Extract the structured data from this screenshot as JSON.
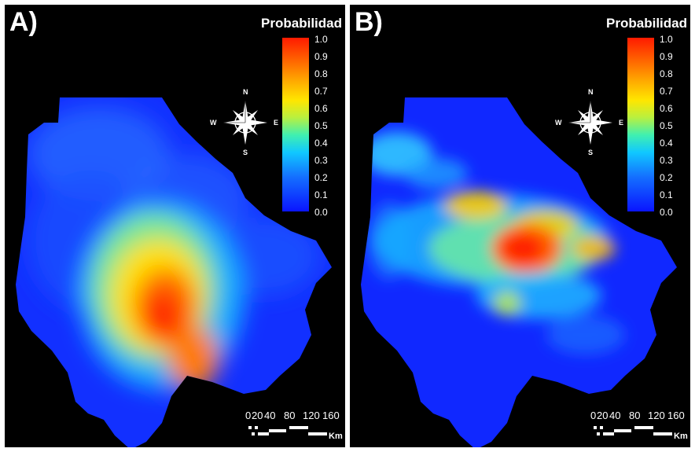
{
  "panels": [
    {
      "letter": "A)",
      "legend": {
        "title": "Probabilidad",
        "ticks": [
          "1.0",
          "0.9",
          "0.8",
          "0.7",
          "0.6",
          "0.5",
          "0.4",
          "0.3",
          "0.2",
          "0.1",
          "0.0"
        ]
      },
      "compass": {
        "n": "N",
        "s": "S",
        "e": "E",
        "w": "W"
      },
      "scale": {
        "labels": [
          "0",
          "20",
          "40",
          "80",
          "120",
          "160"
        ],
        "unit": "Km"
      }
    },
    {
      "letter": "B)",
      "legend": {
        "title": "Probabilidad",
        "ticks": [
          "1.0",
          "0.9",
          "0.8",
          "0.7",
          "0.6",
          "0.5",
          "0.4",
          "0.3",
          "0.2",
          "0.1",
          "0.0"
        ]
      },
      "compass": {
        "n": "N",
        "s": "S",
        "e": "E",
        "w": "W"
      },
      "scale": {
        "labels": [
          "0",
          "20",
          "40",
          "80",
          "120",
          "160"
        ],
        "unit": "Km"
      }
    }
  ],
  "colors": {
    "background": "#000000",
    "low": "#0a14ff",
    "mid_low": "#10c8ff",
    "mid": "#b8f040",
    "mid_high": "#ffe600",
    "high": "#ff1a00"
  }
}
